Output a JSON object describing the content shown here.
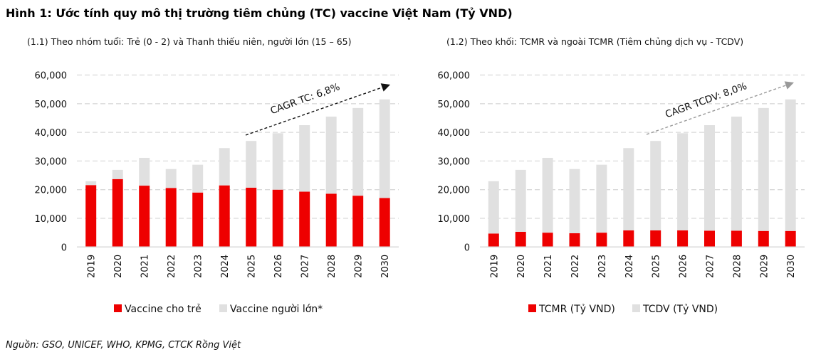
{
  "title": "Hình 1: Ước tính quy mô thị trường tiêm chủng (TC) vaccine Việt Nam (Tỷ VND)",
  "source": "Nguồn: GSO,  UNICEF, WHO, KPMG, CTCK Rồng Việt",
  "colors": {
    "red": "#ee0000",
    "grey": "#e0e0e0",
    "grid": "#d9d9d9"
  },
  "chart_data": [
    {
      "type": "bar",
      "stacked": true,
      "title": "(1.1) Theo nhóm tuổi: Trẻ (0 - 2) và Thanh thiếu niên, người lớn (15 – 65)",
      "categories": [
        "2019",
        "2020",
        "2021",
        "2022",
        "2023",
        "2024",
        "2025",
        "2026",
        "2027",
        "2028",
        "2029",
        "2030"
      ],
      "ylim": [
        0,
        60000
      ],
      "yticks": [
        "0",
        "10,000",
        "20,000",
        "30,000",
        "40,000",
        "50,000",
        "60,000"
      ],
      "grid": true,
      "legend_position": "bottom",
      "annotation": "CAGR TC: 6,8%",
      "series": [
        {
          "name": "Vaccine cho trẻ",
          "color": "#ee0000",
          "values": [
            21600,
            23700,
            21400,
            20600,
            19000,
            21500,
            20700,
            20000,
            19300,
            18600,
            17900,
            17100
          ]
        },
        {
          "name": "Vaccine người lớn*",
          "color": "#e0e0e0",
          "values": [
            1350,
            3200,
            9700,
            6600,
            9700,
            13000,
            16300,
            19700,
            23200,
            26900,
            30600,
            34400
          ]
        }
      ]
    },
    {
      "type": "bar",
      "stacked": true,
      "title": "(1.2) Theo khối: TCMR và ngoài TCMR (Tiêm chủng dịch vụ - TCDV)",
      "categories": [
        "2019",
        "2020",
        "2021",
        "2022",
        "2023",
        "2024",
        "2025",
        "2026",
        "2027",
        "2028",
        "2029",
        "2030"
      ],
      "ylim": [
        0,
        60000
      ],
      "yticks": [
        "0",
        "10,000",
        "20,000",
        "30,000",
        "40,000",
        "50,000",
        "60,000"
      ],
      "grid": true,
      "legend_position": "bottom",
      "annotation": "CAGR TCDV: 8,0%",
      "series": [
        {
          "name": "TCMR (Tỷ VND)",
          "color": "#ee0000",
          "values": [
            4700,
            5300,
            5000,
            4800,
            5000,
            5800,
            5800,
            5800,
            5700,
            5700,
            5600,
            5600
          ]
        },
        {
          "name": "TCDV (Tỷ VND)",
          "color": "#e0e0e0",
          "values": [
            18250,
            21600,
            26100,
            22400,
            23700,
            28700,
            31200,
            33900,
            36800,
            39800,
            42900,
            45900
          ]
        }
      ]
    }
  ]
}
